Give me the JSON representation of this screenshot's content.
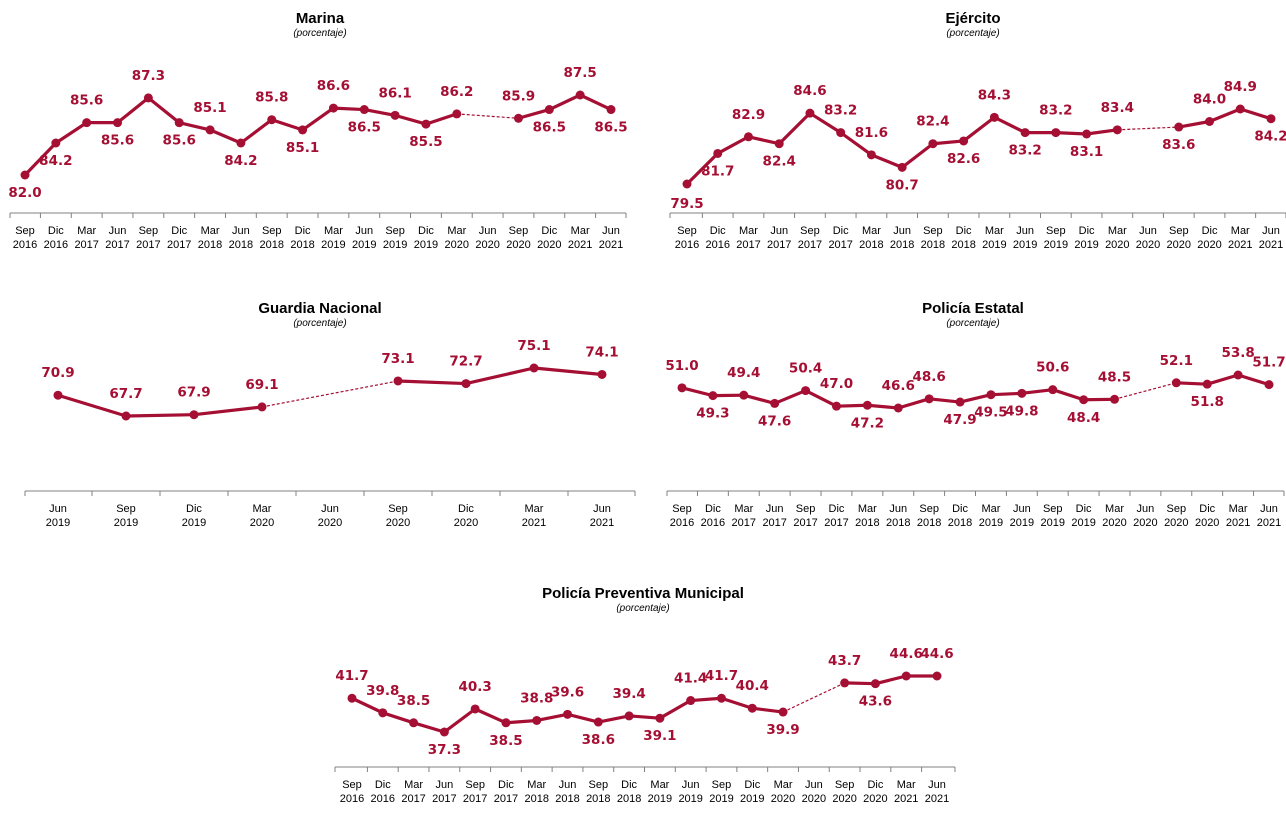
{
  "chart_data": [
    {
      "type": "line",
      "title": "Marina",
      "subtitle": "(porcentaje)",
      "categories": [
        "Sep 2016",
        "Dic 2016",
        "Mar 2017",
        "Jun 2017",
        "Sep 2017",
        "Dic 2017",
        "Mar 2018",
        "Jun 2018",
        "Sep 2018",
        "Dic 2018",
        "Mar 2019",
        "Jun 2019",
        "Sep 2019",
        "Dic 2019",
        "Mar 2020",
        "Jun 2020",
        "Sep 2020",
        "Dic 2020",
        "Mar 2021",
        "Jun 2021"
      ],
      "values": [
        82.0,
        84.2,
        85.6,
        85.6,
        87.3,
        85.6,
        85.1,
        84.2,
        85.8,
        85.1,
        86.6,
        86.5,
        86.1,
        85.5,
        86.2,
        null,
        85.9,
        86.5,
        87.5,
        86.5
      ],
      "labels": [
        "82.0",
        "84.2",
        "85.6",
        "85.6",
        "87.3",
        "85.6",
        "85.1",
        "84.2",
        "85.8",
        "85.1",
        "86.6",
        "86.5",
        "86.1",
        "85.5",
        "86.2",
        "",
        "85.9",
        "86.5",
        "87.5",
        "86.5"
      ],
      "gap_style": "dashed",
      "color": "#a50f33"
    },
    {
      "type": "line",
      "title": "Ejército",
      "subtitle": "(porcentaje)",
      "categories": [
        "Sep 2016",
        "Dic 2016",
        "Mar 2017",
        "Jun 2017",
        "Sep 2017",
        "Dic 2017",
        "Mar 2018",
        "Jun 2018",
        "Sep 2018",
        "Dic 2018",
        "Mar 2019",
        "Jun 2019",
        "Sep 2019",
        "Dic 2019",
        "Mar 2020",
        "Jun 2020",
        "Sep 2020",
        "Dic 2020",
        "Mar 2021",
        "Jun 2021"
      ],
      "values": [
        79.5,
        81.7,
        82.9,
        82.4,
        84.6,
        83.2,
        81.6,
        80.7,
        82.4,
        82.6,
        84.3,
        83.2,
        83.2,
        83.1,
        83.4,
        null,
        83.6,
        84.0,
        84.9,
        84.2
      ],
      "labels": [
        "79.5",
        "81.7",
        "82.9",
        "82.4",
        "84.6",
        "83.2",
        "81.6",
        "80.7",
        "82.4",
        "82.6",
        "84.3",
        "83.2",
        "83.2",
        "83.1",
        "83.4",
        "",
        "83.6",
        "84.0",
        "84.9",
        "84.2"
      ],
      "gap_style": "dashed",
      "color": "#a50f33"
    },
    {
      "type": "line",
      "title": "Guardia Nacional",
      "subtitle": "(porcentaje)",
      "categories": [
        "Jun 2019",
        "Sep 2019",
        "Dic 2019",
        "Mar 2020",
        "Jun 2020",
        "Sep 2020",
        "Dic 2020",
        "Mar 2021",
        "Jun 2021"
      ],
      "values": [
        70.9,
        67.7,
        67.9,
        69.1,
        null,
        73.1,
        72.7,
        75.1,
        74.1
      ],
      "labels": [
        "70.9",
        "67.7",
        "67.9",
        "69.1",
        "",
        "73.1",
        "72.7",
        "75.1",
        "74.1"
      ],
      "gap_style": "dashed",
      "color": "#a50f33"
    },
    {
      "type": "line",
      "title": "Policía Estatal",
      "subtitle": "(porcentaje)",
      "categories": [
        "Sep 2016",
        "Dic 2016",
        "Mar 2017",
        "Jun 2017",
        "Sep 2017",
        "Dic 2017",
        "Mar 2018",
        "Jun 2018",
        "Sep 2018",
        "Dic 2018",
        "Mar 2019",
        "Jun 2019",
        "Sep 2019",
        "Dic 2019",
        "Mar 2020",
        "Jun 2020",
        "Sep 2020",
        "Dic 2020",
        "Mar 2021",
        "Jun 2021"
      ],
      "values": [
        51.0,
        49.3,
        49.4,
        47.6,
        50.4,
        47.0,
        47.2,
        46.6,
        48.6,
        47.9,
        49.5,
        49.8,
        50.6,
        48.4,
        48.5,
        null,
        52.1,
        51.8,
        53.8,
        51.7
      ],
      "labels": [
        "51.0",
        "49.3",
        "49.4",
        "47.6",
        "50.4",
        "47.0",
        "47.2",
        "46.6",
        "48.6",
        "47.9",
        "49.5",
        "49.8",
        "50.6",
        "48.4",
        "48.5",
        "",
        "52.1",
        "51.8",
        "53.8",
        "51.7"
      ],
      "gap_style": "dashed",
      "color": "#a50f33"
    },
    {
      "type": "line",
      "title": "Policía Preventiva Municipal",
      "subtitle": "(porcentaje)",
      "categories": [
        "Sep 2016",
        "Dic 2016",
        "Mar 2017",
        "Jun 2017",
        "Sep 2017",
        "Dic 2017",
        "Mar 2018",
        "Jun 2018",
        "Sep 2018",
        "Dic 2018",
        "Mar 2019",
        "Jun 2019",
        "Sep 2019",
        "Dic 2019",
        "Mar 2020",
        "Jun 2020",
        "Sep 2020",
        "Dic 2020",
        "Mar 2021",
        "Jun 2021"
      ],
      "values": [
        41.7,
        39.8,
        38.5,
        37.3,
        40.3,
        38.5,
        38.8,
        39.6,
        38.6,
        39.4,
        39.1,
        41.4,
        41.7,
        40.4,
        39.9,
        null,
        43.7,
        43.6,
        44.6,
        44.6
      ],
      "labels": [
        "41.7",
        "39.8",
        "38.5",
        "37.3",
        "40.3",
        "38.5",
        "38.8",
        "39.6",
        "38.6",
        "39.4",
        "39.1",
        "41.4",
        "41.7",
        "40.4",
        "39.9",
        "",
        "43.7",
        "43.6",
        "44.6",
        "44.6"
      ],
      "gap_style": "dashed",
      "color": "#a50f33"
    }
  ]
}
